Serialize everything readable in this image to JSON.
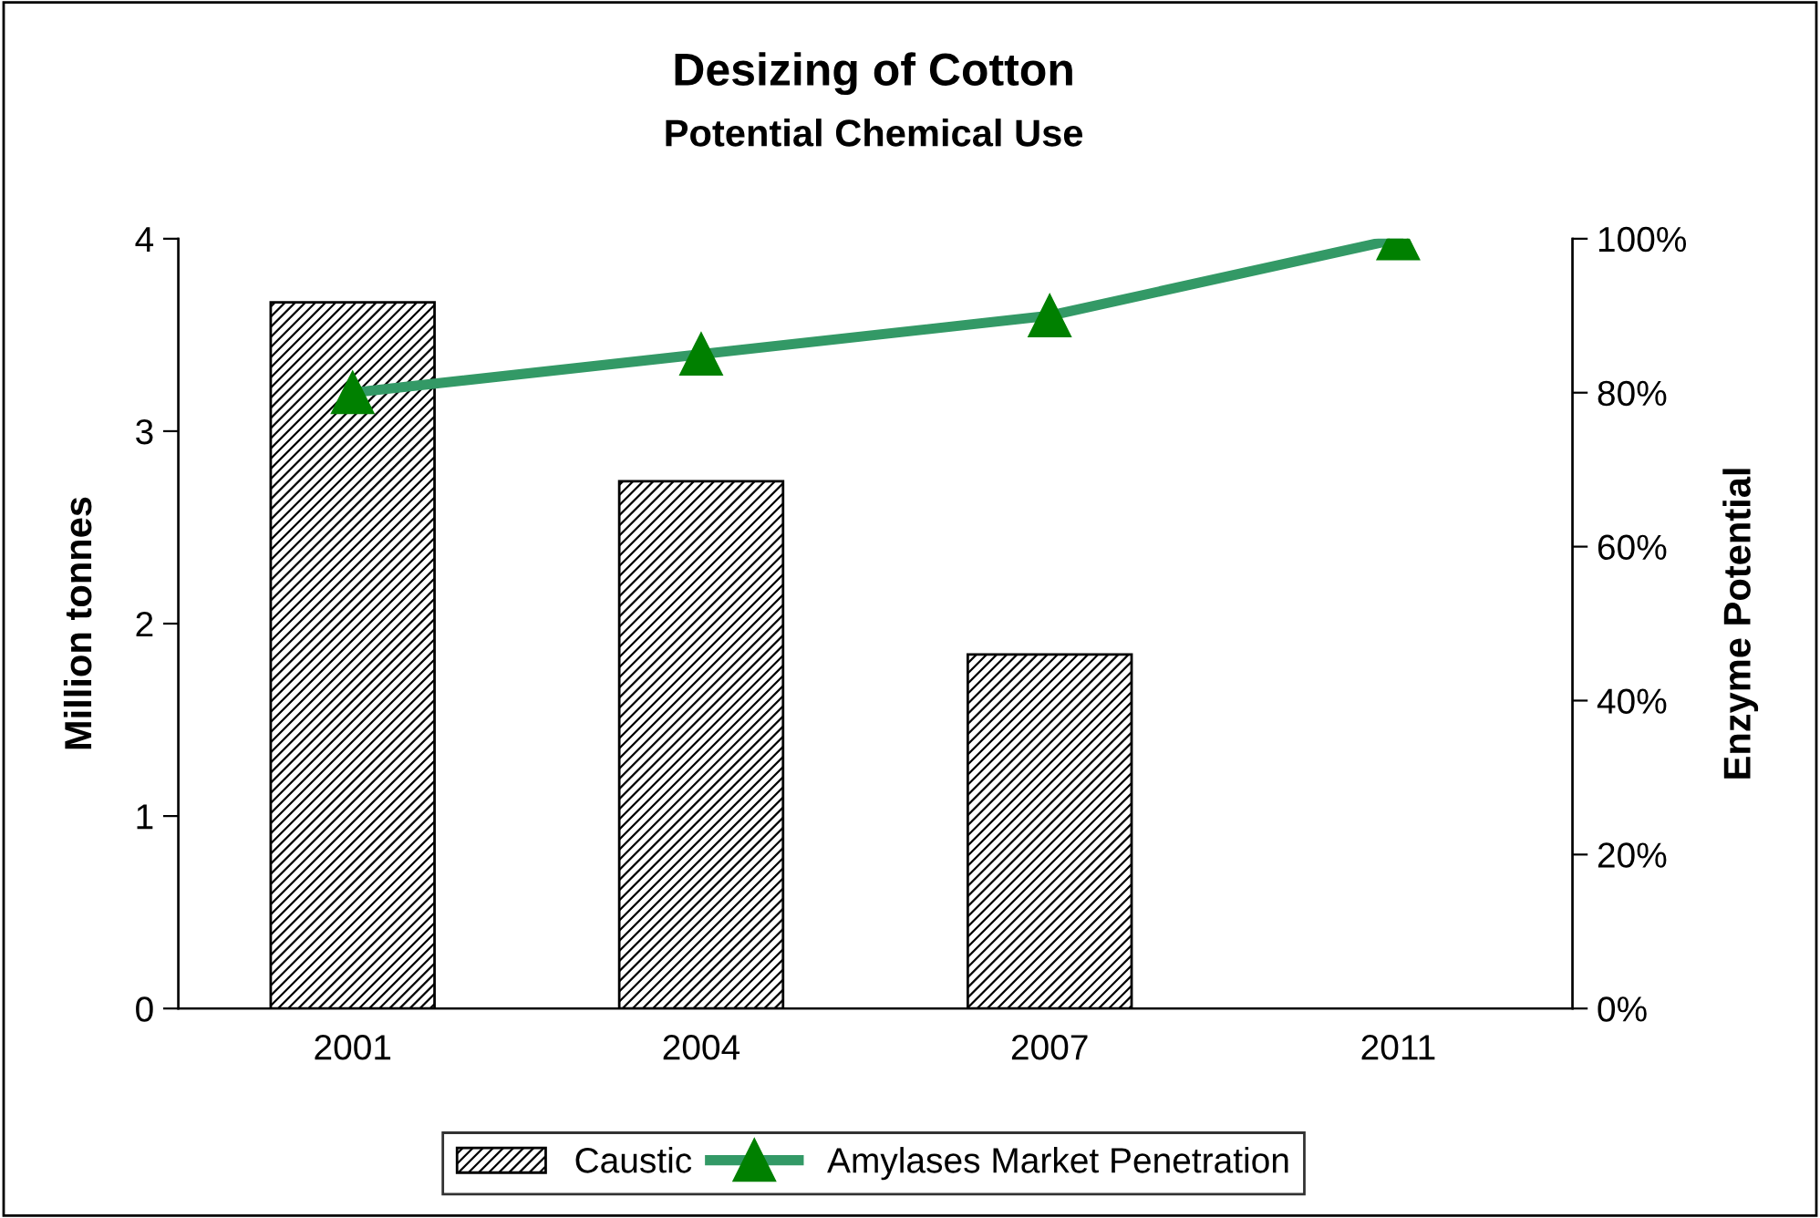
{
  "chart_data": {
    "type": "bar",
    "title": "Desizing of Cotton\nPotential Chemical Use",
    "ylabel": "Million tonnes",
    "y2label": "Enzyme Potential",
    "categories": [
      "2001",
      "2004",
      "2007",
      "2011"
    ],
    "series": [
      {
        "name": "Caustic",
        "color": "#000000",
        "values": [
          3.67,
          2.74,
          1.84,
          null
        ]
      },
      {
        "name": "Amylases Market Penetration",
        "type": "line",
        "axis": "y2",
        "color": "#339966",
        "marker": "triangle",
        "values": [
          80,
          85,
          90,
          100
        ]
      }
    ],
    "ylim": [
      0,
      4
    ],
    "yticks": [
      0,
      1,
      2,
      3,
      4
    ],
    "y2lim": [
      0,
      100
    ],
    "y2ticks": [
      {
        "value": 0,
        "label": "0%"
      },
      {
        "value": 20,
        "label": "20%"
      },
      {
        "value": 40,
        "label": "40%"
      },
      {
        "value": 60,
        "label": "60%"
      },
      {
        "value": 80,
        "label": "80%"
      },
      {
        "value": 100,
        "label": "100%"
      }
    ],
    "grid": false,
    "legend": "bottom"
  }
}
